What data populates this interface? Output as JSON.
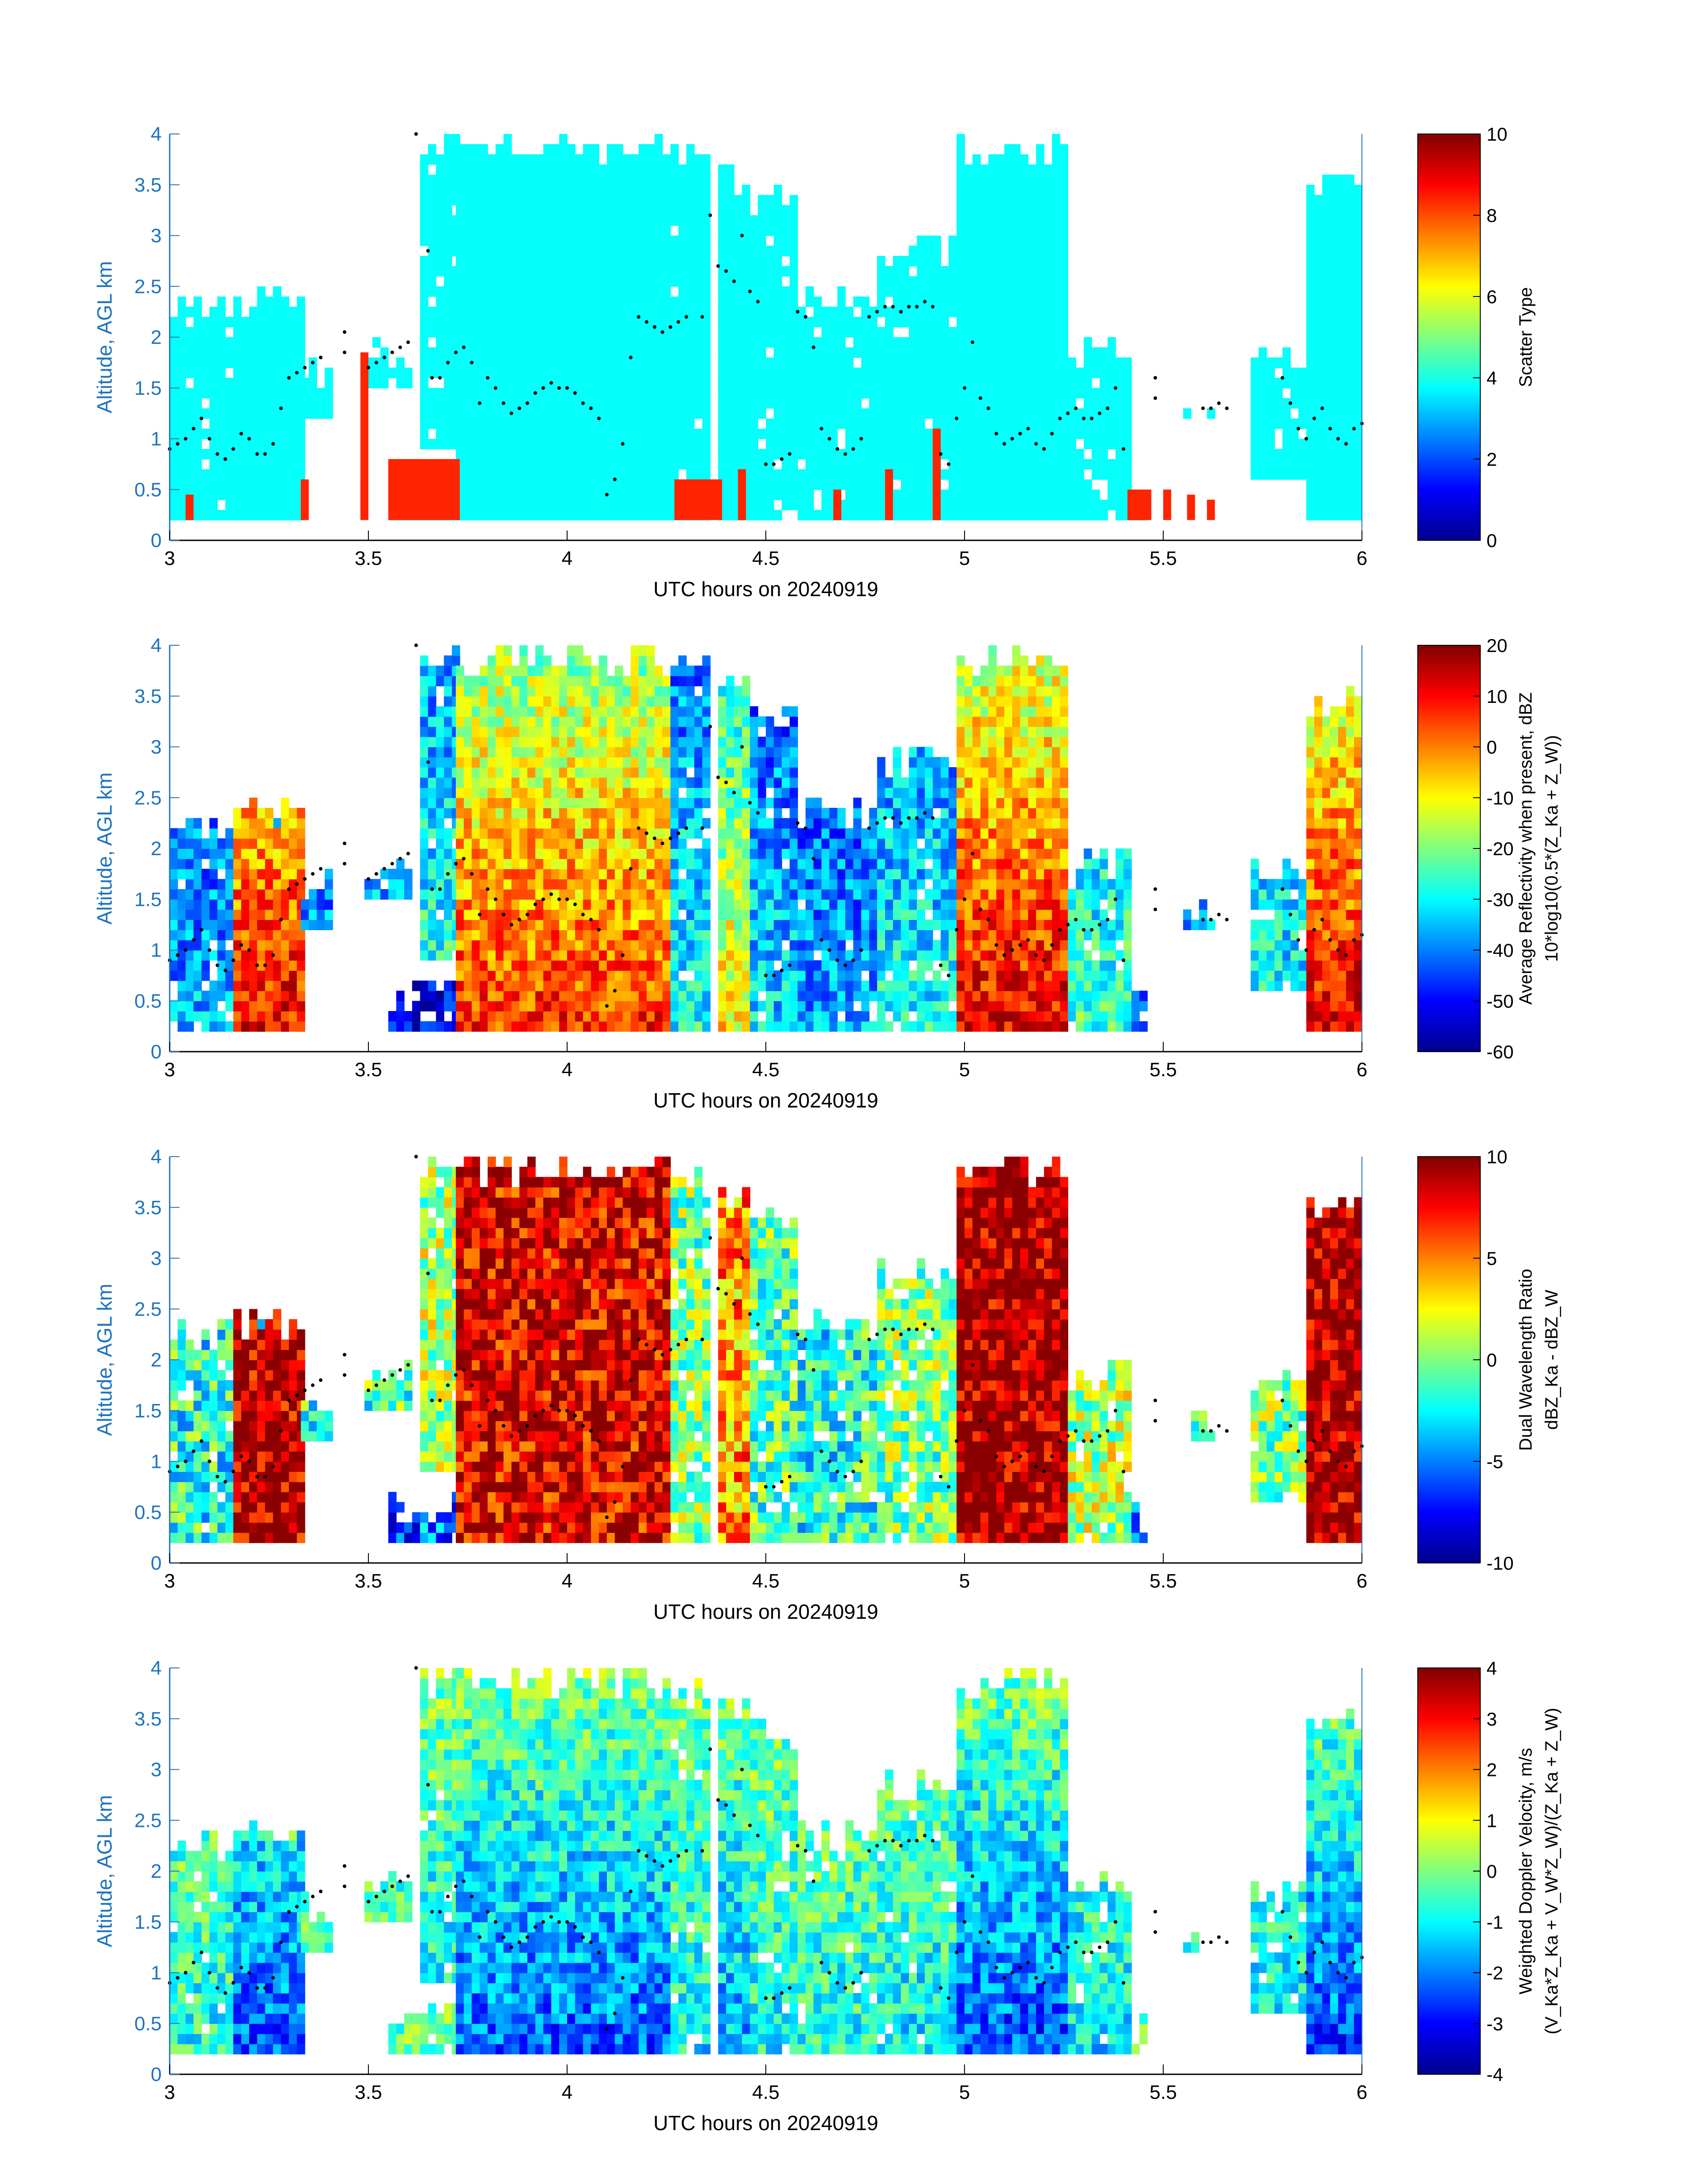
{
  "x_label": "UTC hours on 20240919",
  "y_label": "Altitude, AGL km",
  "x_ticks": [
    "3",
    "3.5",
    "4",
    "4.5",
    "5",
    "5.5",
    "6"
  ],
  "y_ticks": [
    "0",
    "0.5",
    "1",
    "1.5",
    "2",
    "2.5",
    "3",
    "3.5",
    "4"
  ],
  "chart_data": [
    {
      "type": "heatmap",
      "title": "",
      "xlabel": "UTC hours on 20240919",
      "ylabel": "Altitude, AGL km",
      "xlim": [
        3,
        6
      ],
      "ylim": [
        0,
        4
      ],
      "colorbar": {
        "label_lines": [
          "Scatter Type"
        ],
        "ticks": [
          "0",
          "2",
          "4",
          "6",
          "8",
          "10"
        ],
        "range": [
          0,
          10
        ],
        "colormap": "jet"
      },
      "dominant_values": {
        "cloud": 3.8,
        "precipitation": 8.4
      },
      "grid": false
    },
    {
      "type": "heatmap",
      "title": "",
      "xlabel": "UTC hours on 20240919",
      "ylabel": "Altitude, AGL km",
      "xlim": [
        3,
        6
      ],
      "ylim": [
        0,
        4
      ],
      "colorbar": {
        "label_lines": [
          "Average Reflectivity when present, dBZ",
          "10*log10(0.5*(Z_Ka + Z_W))"
        ],
        "ticks": [
          "-60",
          "-50",
          "-40",
          "-30",
          "-20",
          "-10",
          "0",
          "10",
          "20"
        ],
        "range": [
          -60,
          20
        ],
        "colormap": "jet"
      },
      "grid": false
    },
    {
      "type": "heatmap",
      "title": "",
      "xlabel": "UTC hours on 20240919",
      "ylabel": "Altitude, AGL km",
      "xlim": [
        3,
        6
      ],
      "ylim": [
        0,
        4
      ],
      "colorbar": {
        "label_lines": [
          "Dual Wavelength Ratio",
          "dBZ_Ka - dBZ_W"
        ],
        "ticks": [
          "-10",
          "-5",
          "0",
          "5",
          "10"
        ],
        "range": [
          -10,
          10
        ],
        "colormap": "jet"
      },
      "grid": false
    },
    {
      "type": "heatmap",
      "title": "",
      "xlabel": "UTC hours on 20240919",
      "ylabel": "Altitude, AGL km",
      "xlim": [
        3,
        6
      ],
      "ylim": [
        0,
        4
      ],
      "colorbar": {
        "label_lines": [
          "Weighted Doppler Velocity, m/s",
          "(V_Ka*Z_Ka + V_W*Z_W)/(Z_Ka + Z_W)"
        ],
        "ticks": [
          "-4",
          "-3",
          "-2",
          "-1",
          "0",
          "1",
          "2",
          "3",
          "4"
        ],
        "range": [
          -4,
          4
        ],
        "colormap": "jet"
      },
      "grid": false
    }
  ],
  "cloud_layers": [
    {
      "x0": 3.0,
      "x1": 3.34,
      "y0": 0.2,
      "y1": 2.4,
      "intensity": 0.3
    },
    {
      "x0": 3.16,
      "x1": 3.34,
      "y0": 0.2,
      "y1": 2.5,
      "intensity": 0.9
    },
    {
      "x0": 3.33,
      "x1": 3.4,
      "y0": 1.2,
      "y1": 1.8,
      "intensity": 0.3
    },
    {
      "x0": 3.49,
      "x1": 3.6,
      "y0": 1.5,
      "y1": 2.0,
      "intensity": 0.35
    },
    {
      "x0": 3.55,
      "x1": 3.73,
      "y0": 0.2,
      "y1": 0.7,
      "intensity": 0.1
    },
    {
      "x0": 3.63,
      "x1": 3.72,
      "y0": 0.9,
      "y1": 4.0,
      "intensity": 0.45
    },
    {
      "x0": 3.72,
      "x1": 4.26,
      "y0": 0.2,
      "y1": 4.0,
      "intensity": 0.85
    },
    {
      "x0": 4.26,
      "x1": 4.36,
      "y0": 0.2,
      "y1": 3.9,
      "intensity": 0.4
    },
    {
      "x0": 4.38,
      "x1": 4.46,
      "y0": 0.2,
      "y1": 3.7,
      "intensity": 0.65
    },
    {
      "x0": 4.46,
      "x1": 4.58,
      "y0": 0.2,
      "y1": 3.5,
      "intensity": 0.35
    },
    {
      "x0": 4.58,
      "x1": 4.78,
      "y0": 0.2,
      "y1": 2.5,
      "intensity": 0.3
    },
    {
      "x0": 4.78,
      "x1": 4.98,
      "y0": 0.2,
      "y1": 3.0,
      "intensity": 0.4
    },
    {
      "x0": 4.98,
      "x1": 5.26,
      "y0": 0.2,
      "y1": 4.0,
      "intensity": 0.92
    },
    {
      "x0": 5.26,
      "x1": 5.42,
      "y0": 0.2,
      "y1": 2.0,
      "intensity": 0.45
    },
    {
      "x0": 5.42,
      "x1": 5.46,
      "y0": 0.2,
      "y1": 0.6,
      "intensity": 0.2
    },
    {
      "x0": 5.55,
      "x1": 5.62,
      "y0": 1.2,
      "y1": 1.5,
      "intensity": 0.3
    },
    {
      "x0": 5.72,
      "x1": 5.86,
      "y0": 0.6,
      "y1": 1.9,
      "intensity": 0.4
    },
    {
      "x0": 5.86,
      "x1": 6.0,
      "y0": 0.2,
      "y1": 3.6,
      "intensity": 0.92
    }
  ],
  "precip_bars": [
    {
      "x0": 3.04,
      "x1": 3.06,
      "y1": 0.45
    },
    {
      "x0": 3.33,
      "x1": 3.35,
      "y1": 0.6
    },
    {
      "x0": 3.48,
      "x1": 3.5,
      "y1": 1.85
    },
    {
      "x0": 3.48,
      "x1": 3.5,
      "y1": 0.6
    },
    {
      "x0": 3.55,
      "x1": 3.73,
      "y1": 0.8
    },
    {
      "x0": 4.27,
      "x1": 4.39,
      "y1": 0.6
    },
    {
      "x0": 4.43,
      "x1": 4.45,
      "y1": 0.7
    },
    {
      "x0": 4.67,
      "x1": 4.69,
      "y1": 0.5
    },
    {
      "x0": 4.8,
      "x1": 4.82,
      "y1": 0.7
    },
    {
      "x0": 4.92,
      "x1": 4.94,
      "y1": 1.1
    },
    {
      "x0": 5.41,
      "x1": 5.47,
      "y1": 0.5
    },
    {
      "x0": 5.5,
      "x1": 5.52,
      "y1": 0.5
    },
    {
      "x0": 5.56,
      "x1": 5.58,
      "y1": 0.45
    },
    {
      "x0": 5.61,
      "x1": 5.63,
      "y1": 0.4
    }
  ],
  "cloud_base_points": [
    [
      3.0,
      0.9
    ],
    [
      3.02,
      0.95
    ],
    [
      3.04,
      1.0
    ],
    [
      3.06,
      1.1
    ],
    [
      3.08,
      1.2
    ],
    [
      3.1,
      1.0
    ],
    [
      3.12,
      0.85
    ],
    [
      3.14,
      0.8
    ],
    [
      3.16,
      0.9
    ],
    [
      3.18,
      1.05
    ],
    [
      3.2,
      1.0
    ],
    [
      3.22,
      0.85
    ],
    [
      3.24,
      0.85
    ],
    [
      3.26,
      0.95
    ],
    [
      3.28,
      1.3
    ],
    [
      3.3,
      1.6
    ],
    [
      3.32,
      1.65
    ],
    [
      3.34,
      1.7
    ],
    [
      3.36,
      1.75
    ],
    [
      3.38,
      1.8
    ],
    [
      3.44,
      2.05
    ],
    [
      3.44,
      1.85
    ],
    [
      3.5,
      1.7
    ],
    [
      3.52,
      1.75
    ],
    [
      3.54,
      1.8
    ],
    [
      3.56,
      1.85
    ],
    [
      3.58,
      1.9
    ],
    [
      3.6,
      1.95
    ],
    [
      3.62,
      4.0
    ],
    [
      3.65,
      2.85
    ],
    [
      3.66,
      1.6
    ],
    [
      3.68,
      1.6
    ],
    [
      3.7,
      1.75
    ],
    [
      3.72,
      1.85
    ],
    [
      3.74,
      1.9
    ],
    [
      3.76,
      1.75
    ],
    [
      3.78,
      1.35
    ],
    [
      3.8,
      1.6
    ],
    [
      3.82,
      1.5
    ],
    [
      3.84,
      1.35
    ],
    [
      3.86,
      1.25
    ],
    [
      3.88,
      1.3
    ],
    [
      3.9,
      1.35
    ],
    [
      3.92,
      1.45
    ],
    [
      3.94,
      1.5
    ],
    [
      3.96,
      1.55
    ],
    [
      3.98,
      1.5
    ],
    [
      4.0,
      1.5
    ],
    [
      4.02,
      1.45
    ],
    [
      4.04,
      1.35
    ],
    [
      4.06,
      1.3
    ],
    [
      4.08,
      1.2
    ],
    [
      4.1,
      0.45
    ],
    [
      4.12,
      0.6
    ],
    [
      4.14,
      0.95
    ],
    [
      4.16,
      1.8
    ],
    [
      4.18,
      2.2
    ],
    [
      4.2,
      2.15
    ],
    [
      4.22,
      2.1
    ],
    [
      4.24,
      2.05
    ],
    [
      4.26,
      2.1
    ],
    [
      4.28,
      2.15
    ],
    [
      4.3,
      2.2
    ],
    [
      4.34,
      2.2
    ],
    [
      4.36,
      3.2
    ],
    [
      4.38,
      2.7
    ],
    [
      4.4,
      2.65
    ],
    [
      4.42,
      2.55
    ],
    [
      4.44,
      3.0
    ],
    [
      4.46,
      2.45
    ],
    [
      4.48,
      2.35
    ],
    [
      4.5,
      0.75
    ],
    [
      4.52,
      0.75
    ],
    [
      4.54,
      0.8
    ],
    [
      4.56,
      0.85
    ],
    [
      4.58,
      2.25
    ],
    [
      4.6,
      2.2
    ],
    [
      4.62,
      1.9
    ],
    [
      4.64,
      1.1
    ],
    [
      4.66,
      1.0
    ],
    [
      4.68,
      0.9
    ],
    [
      4.7,
      0.85
    ],
    [
      4.72,
      0.9
    ],
    [
      4.74,
      1.0
    ],
    [
      4.76,
      2.2
    ],
    [
      4.78,
      2.25
    ],
    [
      4.8,
      2.3
    ],
    [
      4.82,
      2.3
    ],
    [
      4.84,
      2.25
    ],
    [
      4.86,
      2.3
    ],
    [
      4.88,
      2.3
    ],
    [
      4.9,
      2.35
    ],
    [
      4.92,
      2.3
    ],
    [
      4.94,
      0.85
    ],
    [
      4.96,
      0.75
    ],
    [
      4.98,
      1.2
    ],
    [
      5.0,
      1.5
    ],
    [
      5.02,
      1.95
    ],
    [
      5.04,
      1.4
    ],
    [
      5.06,
      1.3
    ],
    [
      5.08,
      1.05
    ],
    [
      5.1,
      0.95
    ],
    [
      5.12,
      1.0
    ],
    [
      5.14,
      1.05
    ],
    [
      5.16,
      1.1
    ],
    [
      5.18,
      0.95
    ],
    [
      5.2,
      0.9
    ],
    [
      5.22,
      1.05
    ],
    [
      5.24,
      1.2
    ],
    [
      5.26,
      1.25
    ],
    [
      5.28,
      1.3
    ],
    [
      5.3,
      1.2
    ],
    [
      5.32,
      1.2
    ],
    [
      5.34,
      1.25
    ],
    [
      5.36,
      1.3
    ],
    [
      5.38,
      1.5
    ],
    [
      5.4,
      0.9
    ],
    [
      5.48,
      1.6
    ],
    [
      5.48,
      1.4
    ],
    [
      5.6,
      1.3
    ],
    [
      5.62,
      1.3
    ],
    [
      5.64,
      1.35
    ],
    [
      5.66,
      1.3
    ],
    [
      5.8,
      1.6
    ],
    [
      5.82,
      1.35
    ],
    [
      5.84,
      1.1
    ],
    [
      5.86,
      1.0
    ],
    [
      5.88,
      1.2
    ],
    [
      5.9,
      1.3
    ],
    [
      5.92,
      1.1
    ],
    [
      5.94,
      1.0
    ],
    [
      5.96,
      0.95
    ],
    [
      5.98,
      1.1
    ],
    [
      6.0,
      1.15
    ]
  ]
}
